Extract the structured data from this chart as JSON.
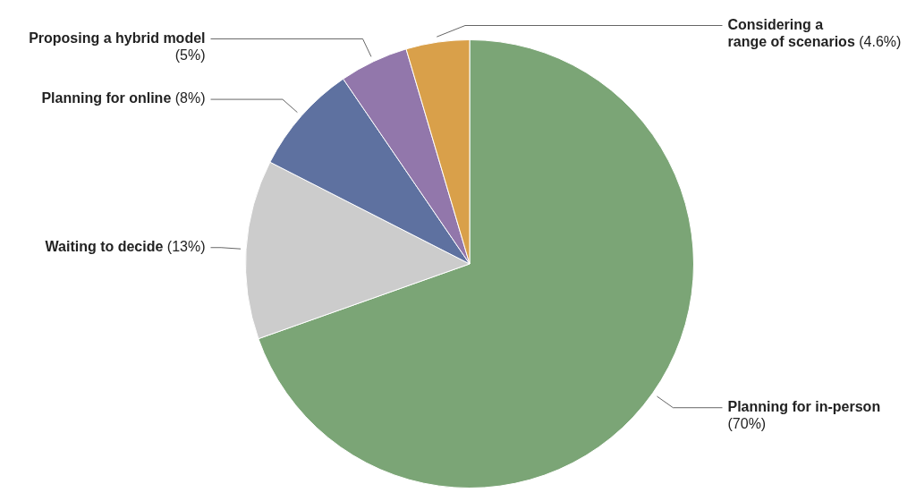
{
  "chart_data": {
    "type": "pie",
    "categories": [
      "Planning for in-person",
      "Waiting to decide",
      "Planning for online",
      "Proposing a hybrid model",
      "Considering a range of scenarios"
    ],
    "values": [
      70,
      13,
      8,
      5,
      4.6
    ],
    "colors": [
      "#7ba576",
      "#cccccc",
      "#5e71a0",
      "#9277ab",
      "#d9a04a"
    ],
    "value_labels": [
      "(70%)",
      "(13%)",
      "(8%)",
      "(5%)",
      "(4.6%)"
    ]
  }
}
